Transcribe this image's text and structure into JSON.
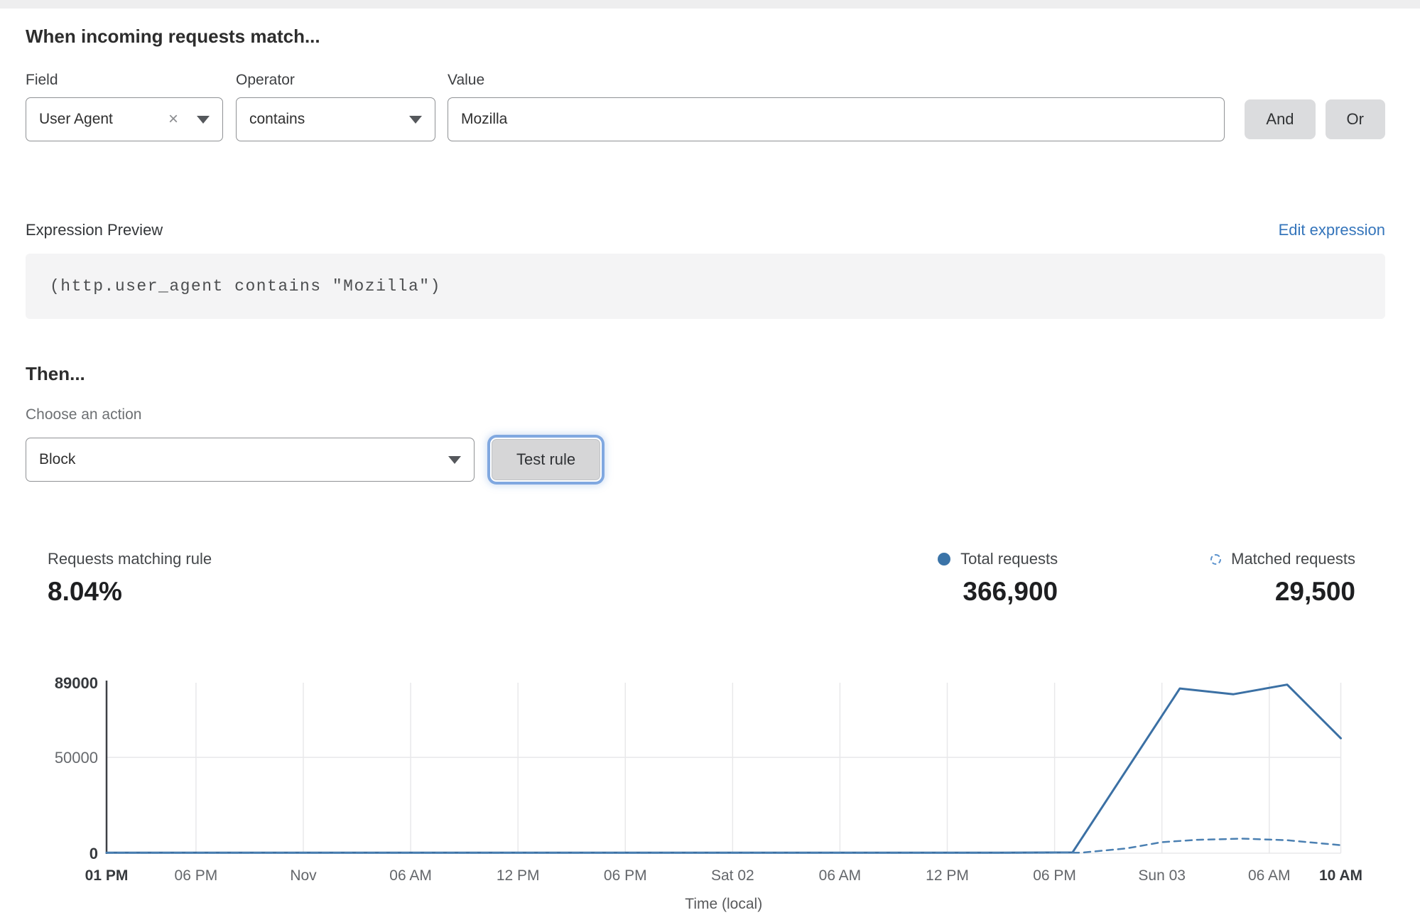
{
  "rule_builder": {
    "heading": "When incoming requests match...",
    "field": {
      "label": "Field",
      "selected": "User Agent"
    },
    "operator": {
      "label": "Operator",
      "selected": "contains"
    },
    "value": {
      "label": "Value",
      "text": "Mozilla"
    },
    "and_button": "And",
    "or_button": "Or"
  },
  "expression_preview": {
    "label": "Expression Preview",
    "edit_link": "Edit expression",
    "expression": "(http.user_agent contains \"Mozilla\")"
  },
  "action_section": {
    "heading": "Then...",
    "choose_label": "Choose an action",
    "action_selected": "Block",
    "test_button": "Test rule"
  },
  "stats": {
    "matching": {
      "label": "Requests matching rule",
      "value": "8.04%"
    },
    "total": {
      "label": "Total requests",
      "value": "366,900"
    },
    "matched": {
      "label": "Matched requests",
      "value": "29,500"
    }
  },
  "colors": {
    "accent_blue": "#3b74a8",
    "legend_dashed_blue": "#5b92cd",
    "link_blue": "#3575bb",
    "focus_ring_blue": "#80a8e0"
  },
  "chart_data": {
    "type": "line",
    "title": "",
    "xlabel": "Time (local)",
    "ylabel": "",
    "x_start": "Fri 01 PM",
    "x_total_hours": 69,
    "ylim": [
      0,
      89000
    ],
    "grid": true,
    "legend_position": "top-right",
    "yticks": [
      {
        "value": 89000,
        "label": "89000",
        "bold": true,
        "grid": false
      },
      {
        "value": 50000,
        "label": "50000",
        "bold": false,
        "grid": true
      },
      {
        "value": 0,
        "label": "0",
        "bold": true,
        "grid": true
      }
    ],
    "xticks": [
      {
        "hour": 0,
        "label": "01 PM",
        "bold": true
      },
      {
        "hour": 5,
        "label": "06 PM",
        "bold": false
      },
      {
        "hour": 11,
        "label": "Nov",
        "bold": false
      },
      {
        "hour": 17,
        "label": "06 AM",
        "bold": false
      },
      {
        "hour": 23,
        "label": "12 PM",
        "bold": false
      },
      {
        "hour": 29,
        "label": "06 PM",
        "bold": false
      },
      {
        "hour": 35,
        "label": "Sat 02",
        "bold": false
      },
      {
        "hour": 41,
        "label": "06 AM",
        "bold": false
      },
      {
        "hour": 47,
        "label": "12 PM",
        "bold": false
      },
      {
        "hour": 53,
        "label": "06 PM",
        "bold": false
      },
      {
        "hour": 59,
        "label": "Sun 03",
        "bold": false
      },
      {
        "hour": 65,
        "label": "06 AM",
        "bold": false
      },
      {
        "hour": 69,
        "label": "10 AM",
        "bold": true
      }
    ],
    "series": [
      {
        "name": "Total requests",
        "style": "solid",
        "color": "#3b70a4",
        "points": [
          [
            0,
            300
          ],
          [
            10,
            300
          ],
          [
            20,
            300
          ],
          [
            30,
            300
          ],
          [
            40,
            300
          ],
          [
            50,
            300
          ],
          [
            54,
            400
          ],
          [
            60,
            86000
          ],
          [
            63,
            83000
          ],
          [
            66,
            88000
          ],
          [
            69,
            60000
          ]
        ]
      },
      {
        "name": "Matched requests",
        "style": "dashed",
        "color": "#4b80b2",
        "points": [
          [
            0,
            200
          ],
          [
            10,
            200
          ],
          [
            20,
            200
          ],
          [
            30,
            200
          ],
          [
            40,
            200
          ],
          [
            50,
            200
          ],
          [
            54.5,
            300
          ],
          [
            57,
            2500
          ],
          [
            59,
            5800
          ],
          [
            61,
            7000
          ],
          [
            63.5,
            7600
          ],
          [
            66,
            6800
          ],
          [
            69,
            4200
          ]
        ]
      }
    ]
  }
}
